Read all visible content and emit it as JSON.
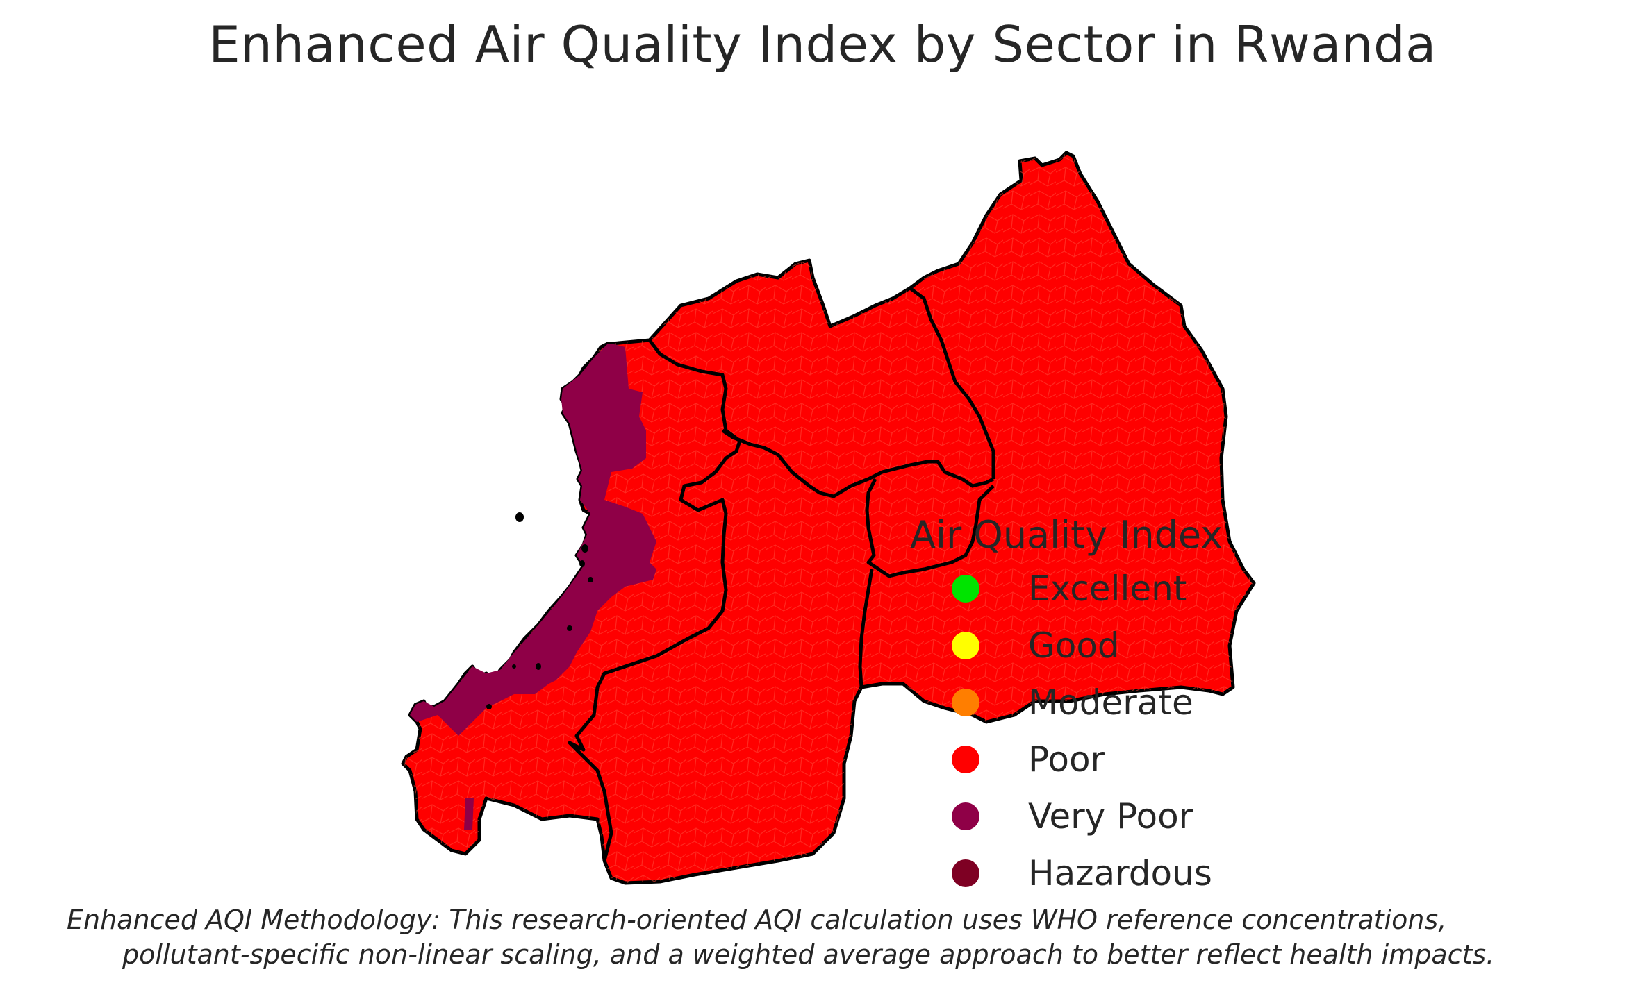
{
  "title": "Enhanced Air Quality Index by Sector in Rwanda",
  "legend": {
    "title": "Air Quality Index",
    "items": [
      {
        "label": "Excellent",
        "color": "#00e400"
      },
      {
        "label": "Good",
        "color": "#ffff00"
      },
      {
        "label": "Moderate",
        "color": "#ff7e00"
      },
      {
        "label": "Poor",
        "color": "#ff0000"
      },
      {
        "label": "Very Poor",
        "color": "#8f0047"
      },
      {
        "label": "Hazardous",
        "color": "#7e0023"
      }
    ]
  },
  "map": {
    "country": "Rwanda",
    "dominant_category": "Poor",
    "secondary_category": "Very Poor",
    "dominant_color": "#ff0000",
    "secondary_color": "#8f0047",
    "border_color": "#000000"
  },
  "footnote": {
    "line1": "Enhanced AQI Methodology: This research-oriented AQI calculation uses WHO reference concentrations,",
    "line2": "pollutant-specific non-linear scaling, and a weighted average approach to better reflect health impacts."
  }
}
